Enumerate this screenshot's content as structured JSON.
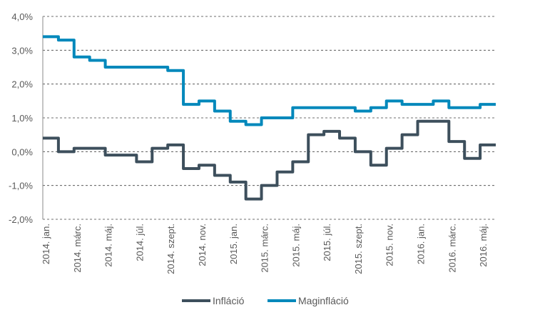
{
  "chart_data": {
    "type": "line",
    "title": "",
    "xlabel": "",
    "ylabel": "",
    "ylim": [
      -2.0,
      4.0
    ],
    "yticks": [
      "-2,0%",
      "-1,0%",
      "0,0%",
      "1,0%",
      "2,0%",
      "3,0%",
      "4,0%"
    ],
    "grid": true,
    "legend_position": "bottom",
    "step": true,
    "x": [
      "2014. jan.",
      "2014. febr.",
      "2014. márc.",
      "2014. ápr.",
      "2014. máj.",
      "2014. jún.",
      "2014. júl.",
      "2014. aug.",
      "2014. szept.",
      "2014. okt.",
      "2014. nov.",
      "2014. dec.",
      "2015. jan.",
      "2015. febr.",
      "2015. márc.",
      "2015. ápr.",
      "2015. máj.",
      "2015. jún.",
      "2015. júl.",
      "2015. aug.",
      "2015. szept.",
      "2015. okt.",
      "2015. nov.",
      "2015. dec.",
      "2016. jan.",
      "2016. febr.",
      "2016. márc.",
      "2016. ápr.",
      "2016. máj."
    ],
    "xtick_labels": [
      "2014. jan.",
      "2014. márc.",
      "2014. máj.",
      "2014. júl.",
      "2014. szept.",
      "2014. nov.",
      "2015. jan.",
      "2015. márc.",
      "2015. máj.",
      "2015. júl.",
      "2015. szept.",
      "2015. nov.",
      "2016. jan.",
      "2016. márc.",
      "2016. máj."
    ],
    "series": [
      {
        "name": "Infláció",
        "color": "#3d4f5c",
        "values": [
          0.4,
          0.0,
          0.1,
          0.1,
          -0.1,
          -0.1,
          -0.3,
          0.1,
          0.2,
          -0.5,
          -0.4,
          -0.7,
          -0.9,
          -1.4,
          -1.0,
          -0.6,
          -0.3,
          0.5,
          0.6,
          0.4,
          0.0,
          -0.4,
          0.1,
          0.5,
          0.9,
          0.9,
          0.3,
          -0.2,
          0.2
        ]
      },
      {
        "name": "Maginfláció",
        "color": "#0088bb",
        "values": [
          3.4,
          3.3,
          2.8,
          2.7,
          2.5,
          2.5,
          2.5,
          2.5,
          2.4,
          1.4,
          1.5,
          1.2,
          0.9,
          0.8,
          1.0,
          1.0,
          1.3,
          1.3,
          1.3,
          1.3,
          1.2,
          1.3,
          1.5,
          1.4,
          1.4,
          1.5,
          1.3,
          1.3,
          1.4
        ]
      }
    ]
  }
}
